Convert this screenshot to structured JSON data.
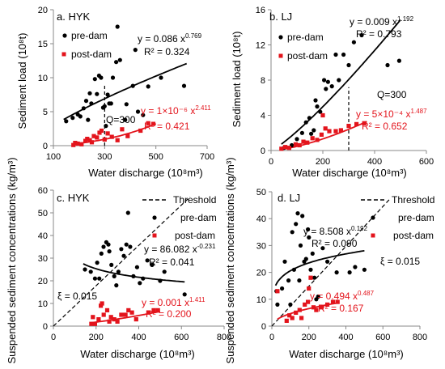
{
  "colors": {
    "pre": "#000000",
    "post": "#e3141c",
    "axis": "#888888"
  },
  "chart_data": [
    {
      "type": "scatter",
      "title": "a. HYK",
      "xlabel": "Water discharge (10⁸m³)",
      "ylabel": "Sediment load (10⁸t)",
      "xlim": [
        100,
        700
      ],
      "ylim": [
        0,
        20
      ],
      "xticks": [
        "100",
        "300",
        "500",
        "700"
      ],
      "yticks": [
        "0",
        "5",
        "10",
        "15",
        "20"
      ],
      "legend": {
        "position": "top-left",
        "pre": "pre-dam",
        "post": "post-dam"
      },
      "threshold_label": "Q=300",
      "series": [
        {
          "name": "pre-dam",
          "points": [
            [
              150,
              3.6
            ],
            [
              175,
              4.1
            ],
            [
              195,
              4.6
            ],
            [
              205,
              4.3
            ],
            [
              218,
              5.5
            ],
            [
              228,
              6.6
            ],
            [
              235,
              3.8
            ],
            [
              242,
              7.7
            ],
            [
              248,
              6.2
            ],
            [
              262,
              9.8
            ],
            [
              270,
              7.6
            ],
            [
              278,
              10.3
            ],
            [
              286,
              10.0
            ],
            [
              294,
              5.6
            ],
            [
              300,
              5.8
            ],
            [
              305,
              2.9
            ],
            [
              312,
              7.5
            ],
            [
              318,
              6.2
            ],
            [
              325,
              6.2
            ],
            [
              332,
              10.0
            ],
            [
              345,
              12.3
            ],
            [
              350,
              17.5
            ],
            [
              360,
              12.6
            ],
            [
              380,
              3.8
            ],
            [
              385,
              6.1
            ],
            [
              410,
              8.8
            ],
            [
              420,
              14.1
            ],
            [
              430,
              5.0
            ],
            [
              450,
              4.5
            ],
            [
              470,
              8.7
            ],
            [
              520,
              10.0
            ],
            [
              610,
              8.8
            ]
          ]
        },
        {
          "name": "post-dam",
          "points": [
            [
              178,
              0.1
            ],
            [
              185,
              0.4
            ],
            [
              195,
              0.3
            ],
            [
              210,
              0.2
            ],
            [
              225,
              0.7
            ],
            [
              232,
              1.0
            ],
            [
              242,
              0.8
            ],
            [
              250,
              0.5
            ],
            [
              258,
              1.4
            ],
            [
              270,
              1.2
            ],
            [
              280,
              1.9
            ],
            [
              288,
              2.2
            ],
            [
              300,
              0.9
            ],
            [
              312,
              1.8
            ],
            [
              328,
              1.3
            ],
            [
              350,
              0.8
            ],
            [
              368,
              2.4
            ],
            [
              390,
              1.4
            ],
            [
              440,
              2.2
            ],
            [
              470,
              3.3
            ],
            [
              490,
              3.2
            ]
          ]
        }
      ],
      "fits": [
        {
          "series": "pre-dam",
          "coef": "y = 0.086 x",
          "exp": "0.769",
          "r2": "R² = 0.324",
          "a": 0.086,
          "b": 0.769,
          "x_range": [
            140,
            620
          ]
        },
        {
          "series": "post-dam",
          "coef": "y = 1×10⁻⁶ x",
          "exp": "2.411",
          "r2": "R² = 0.421",
          "a": 1e-06,
          "b": 2.411,
          "x_range": [
            180,
            500
          ]
        }
      ],
      "threshold": {
        "type": "vertical",
        "value": 300
      }
    },
    {
      "type": "scatter",
      "title": "b. LJ",
      "xlabel": "Water discharge (10⁸m³)",
      "ylabel": "Sediment load (10⁸t)",
      "xlim": [
        0,
        600
      ],
      "ylim": [
        0,
        16
      ],
      "xticks": [
        "0",
        "200",
        "400",
        "600"
      ],
      "yticks": [
        "0",
        "4",
        "8",
        "12",
        "16"
      ],
      "legend": {
        "position": "top-left",
        "pre": "pre-dam",
        "post": "post-dam"
      },
      "threshold_label": "Q=300",
      "series": [
        {
          "name": "pre-dam",
          "points": [
            [
              50,
              0.3
            ],
            [
              80,
              0.6
            ],
            [
              100,
              1.3
            ],
            [
              120,
              2.0
            ],
            [
              135,
              3.2
            ],
            [
              148,
              3.7
            ],
            [
              155,
              1.9
            ],
            [
              165,
              2.3
            ],
            [
              172,
              5.7
            ],
            [
              178,
              5.0
            ],
            [
              190,
              4.4
            ],
            [
              205,
              8.0
            ],
            [
              212,
              7.0
            ],
            [
              220,
              7.8
            ],
            [
              235,
              7.3
            ],
            [
              250,
              10.9
            ],
            [
              262,
              8.0
            ],
            [
              280,
              10.9
            ],
            [
              300,
              9.7
            ],
            [
              320,
              12.3
            ],
            [
              350,
              13.1
            ],
            [
              450,
              9.7
            ],
            [
              495,
              10.2
            ]
          ]
        },
        {
          "name": "post-dam",
          "points": [
            [
              40,
              0.2
            ],
            [
              55,
              0.4
            ],
            [
              70,
              0.3
            ],
            [
              95,
              0.7
            ],
            [
              110,
              0.6
            ],
            [
              125,
              1.0
            ],
            [
              140,
              0.9
            ],
            [
              160,
              1.4
            ],
            [
              178,
              1.2
            ],
            [
              195,
              1.8
            ],
            [
              200,
              4.0
            ],
            [
              210,
              2.5
            ],
            [
              225,
              2.2
            ],
            [
              250,
              2.2
            ],
            [
              270,
              2.3
            ],
            [
              300,
              2.8
            ],
            [
              330,
              3.0
            ],
            [
              360,
              3.1
            ]
          ]
        }
      ],
      "fits": [
        {
          "series": "pre-dam",
          "coef": "y = 0.009 x",
          "exp": "1.192",
          "r2": "R² = 0.793",
          "a": 0.009,
          "b": 1.192,
          "x_range": [
            40,
            500
          ]
        },
        {
          "series": "post-dam",
          "coef": "y = 5×10⁻⁴ x",
          "exp": "1.487",
          "r2": "R² = 0.652",
          "a": 0.0005,
          "b": 1.487,
          "x_range": [
            40,
            370
          ]
        }
      ],
      "threshold": {
        "type": "vertical",
        "value": 300
      }
    },
    {
      "type": "scatter",
      "title": "c. HYK",
      "xlabel": "Water discharge (10⁸m³)",
      "ylabel": "Suspended sediment concentrations (kg/m³)",
      "xlim": [
        0,
        800
      ],
      "ylim": [
        0,
        60
      ],
      "xticks": [
        "0",
        "200",
        "400",
        "600",
        "800"
      ],
      "yticks": [
        "0",
        "10",
        "20",
        "30",
        "40",
        "50",
        "60"
      ],
      "legend": {
        "position": "top-right",
        "threshold": "Threshold",
        "pre": "pre-dam",
        "post": "post-dam"
      },
      "threshold_label": "ξ = 0.015",
      "series": [
        {
          "name": "pre-dam",
          "points": [
            [
              148,
              25
            ],
            [
              175,
              24
            ],
            [
              195,
              21
            ],
            [
              205,
              28
            ],
            [
              215,
              21
            ],
            [
              225,
              32
            ],
            [
              235,
              35
            ],
            [
              248,
              37
            ],
            [
              258,
              36
            ],
            [
              262,
              33
            ],
            [
              272,
              27
            ],
            [
              285,
              22
            ],
            [
              295,
              18
            ],
            [
              305,
              24
            ],
            [
              318,
              34
            ],
            [
              330,
              31
            ],
            [
              342,
              36
            ],
            [
              350,
              50
            ],
            [
              360,
              35
            ],
            [
              375,
              22
            ],
            [
              392,
              26
            ],
            [
              405,
              19
            ],
            [
              420,
              21
            ],
            [
              440,
              29
            ],
            [
              462,
              27
            ],
            [
              500,
              20
            ],
            [
              520,
              24
            ],
            [
              615,
              14
            ]
          ]
        },
        {
          "name": "post-dam",
          "points": [
            [
              178,
              1
            ],
            [
              185,
              4
            ],
            [
              195,
              1
            ],
            [
              212,
              3
            ],
            [
              222,
              9
            ],
            [
              228,
              10
            ],
            [
              236,
              5
            ],
            [
              252,
              7
            ],
            [
              262,
              2
            ],
            [
              270,
              4
            ],
            [
              285,
              3
            ],
            [
              300,
              2
            ],
            [
              318,
              5
            ],
            [
              338,
              5
            ],
            [
              352,
              7
            ],
            [
              368,
              6
            ],
            [
              388,
              3
            ],
            [
              445,
              6
            ],
            [
              470,
              7
            ],
            [
              490,
              7
            ]
          ]
        }
      ],
      "fits": [
        {
          "series": "pre-dam",
          "coef": "y = 86.082 x",
          "exp": "-0.231",
          "r2": "R² = 0.041",
          "a": 86.082,
          "b": -0.231,
          "x_range": [
            140,
            615
          ]
        },
        {
          "series": "post-dam",
          "coef": "y = 0.001 x",
          "exp": "1.411",
          "r2": "R² = 0.200",
          "a": 0.001,
          "b": 1.411,
          "x_range": [
            180,
            500
          ]
        }
      ],
      "threshold": {
        "type": "line",
        "slope": 0.015
      }
    },
    {
      "type": "scatter",
      "title": "d. LJ",
      "xlabel": "Water discharge (10⁸m³)",
      "ylabel": "Suspended sediment concentrations (kg/m³)",
      "xlim": [
        0,
        800
      ],
      "ylim": [
        0,
        50
      ],
      "xticks": [
        "0",
        "200",
        "400",
        "600",
        "800"
      ],
      "yticks": [
        "0",
        "10",
        "20",
        "30",
        "40",
        "50"
      ],
      "legend": {
        "position": "top-right",
        "threshold": "Threshold",
        "pre": "pre-dam",
        "post": "post-dam"
      },
      "threshold_label": "ξ = 0.015",
      "series": [
        {
          "name": "pre-dam",
          "points": [
            [
              25,
              13
            ],
            [
              30,
              8
            ],
            [
              55,
              14
            ],
            [
              70,
              24
            ],
            [
              90,
              17
            ],
            [
              100,
              8
            ],
            [
              110,
              35
            ],
            [
              120,
              21
            ],
            [
              130,
              38
            ],
            [
              140,
              42
            ],
            [
              148,
              17
            ],
            [
              155,
              30
            ],
            [
              165,
              41
            ],
            [
              175,
              24
            ],
            [
              185,
              25
            ],
            [
              195,
              36
            ],
            [
              200,
              33
            ],
            [
              210,
              21
            ],
            [
              220,
              27
            ],
            [
              230,
              18
            ],
            [
              240,
              10
            ],
            [
              250,
              11
            ],
            [
              275,
              29
            ],
            [
              300,
              24
            ],
            [
              350,
              20
            ],
            [
              420,
              20
            ],
            [
              450,
              22
            ],
            [
              500,
              21
            ]
          ]
        },
        {
          "name": "post-dam",
          "points": [
            [
              30,
              13
            ],
            [
              80,
              2
            ],
            [
              95,
              4
            ],
            [
              110,
              3
            ],
            [
              130,
              5
            ],
            [
              150,
              6
            ],
            [
              160,
              3
            ],
            [
              178,
              8
            ],
            [
              195,
              9
            ],
            [
              200,
              14
            ],
            [
              210,
              18
            ],
            [
              225,
              7
            ],
            [
              240,
              6
            ],
            [
              268,
              7
            ],
            [
              300,
              8
            ],
            [
              330,
              9
            ],
            [
              355,
              9
            ]
          ]
        }
      ],
      "fits": [
        {
          "series": "pre-dam",
          "coef": "y = 8.508 x",
          "exp": "0.192",
          "r2": "R² = 0.090",
          "a": 8.508,
          "b": 0.192,
          "x_range": [
            20,
            500
          ]
        },
        {
          "series": "post-dam",
          "coef": "y = 0.494 x",
          "exp": "0.487",
          "r2": "R² = 0.167",
          "a": 0.494,
          "b": 0.487,
          "x_range": [
            30,
            365
          ]
        }
      ],
      "threshold": {
        "type": "line",
        "slope": 0.015
      }
    }
  ]
}
